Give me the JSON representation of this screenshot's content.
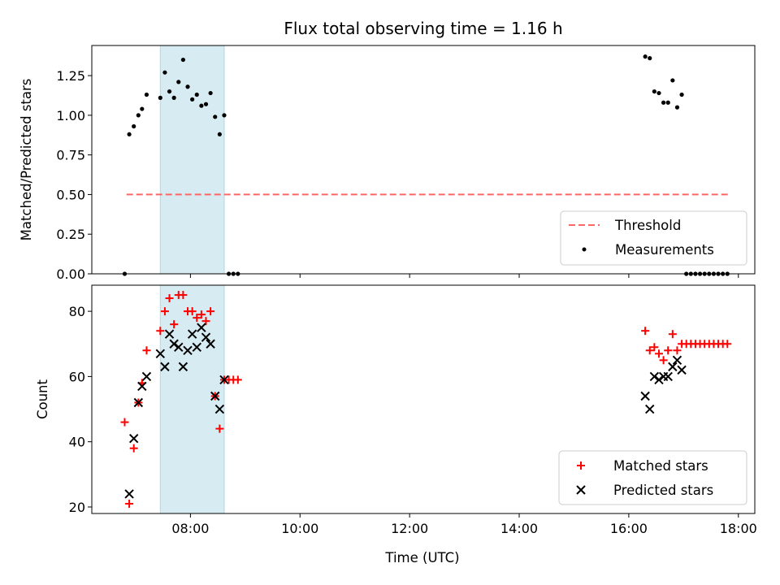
{
  "chart_data": [
    {
      "type": "scatter",
      "title": "Flux total observing time = 1.16 h",
      "xlabel": "",
      "ylabel": "Matched/Predicted stars",
      "ylim": [
        0,
        1.44
      ],
      "yticks": [
        "0.00",
        "0.25",
        "0.50",
        "0.75",
        "1.00",
        "1.25"
      ],
      "xlim_hours": [
        6.2,
        18.3
      ],
      "shaded_region": {
        "start": "07:27",
        "end": "08:37",
        "color": "#add8e6"
      },
      "threshold": {
        "name": "Threshold",
        "value": 0.5,
        "x_start": "06:50",
        "x_end": "17:50",
        "color": "#ff6666"
      },
      "series": [
        {
          "name": "Measurements",
          "color": "#000000",
          "marker": "dot",
          "points": [
            [
              "06:48",
              0.0
            ],
            [
              "06:53",
              0.88
            ],
            [
              "06:58",
              0.93
            ],
            [
              "07:03",
              1.0
            ],
            [
              "07:07",
              1.04
            ],
            [
              "07:12",
              1.13
            ],
            [
              "07:27",
              1.11
            ],
            [
              "07:32",
              1.27
            ],
            [
              "07:37",
              1.15
            ],
            [
              "07:42",
              1.11
            ],
            [
              "07:47",
              1.21
            ],
            [
              "07:52",
              1.35
            ],
            [
              "07:57",
              1.18
            ],
            [
              "08:02",
              1.1
            ],
            [
              "08:07",
              1.13
            ],
            [
              "08:12",
              1.06
            ],
            [
              "08:17",
              1.07
            ],
            [
              "08:22",
              1.14
            ],
            [
              "08:27",
              0.99
            ],
            [
              "08:32",
              0.88
            ],
            [
              "08:37",
              1.0
            ],
            [
              "08:42",
              0.0
            ],
            [
              "08:47",
              0.0
            ],
            [
              "08:52",
              0.0
            ],
            [
              "16:18",
              1.37
            ],
            [
              "16:23",
              1.36
            ],
            [
              "16:28",
              1.15
            ],
            [
              "16:33",
              1.14
            ],
            [
              "16:38",
              1.08
            ],
            [
              "16:43",
              1.08
            ],
            [
              "16:48",
              1.22
            ],
            [
              "16:53",
              1.05
            ],
            [
              "16:58",
              1.13
            ],
            [
              "17:03",
              0.0
            ],
            [
              "17:08",
              0.0
            ],
            [
              "17:13",
              0.0
            ],
            [
              "17:18",
              0.0
            ],
            [
              "17:23",
              0.0
            ],
            [
              "17:28",
              0.0
            ],
            [
              "17:33",
              0.0
            ],
            [
              "17:38",
              0.0
            ],
            [
              "17:43",
              0.0
            ],
            [
              "17:48",
              0.0
            ]
          ]
        }
      ],
      "legend": {
        "placement": "lower-right",
        "entries": [
          "Threshold",
          "Measurements"
        ]
      }
    },
    {
      "type": "scatter",
      "title": "",
      "xlabel": "Time (UTC)",
      "ylabel": "Count",
      "ylim": [
        18,
        88
      ],
      "yticks": [
        "20",
        "40",
        "60",
        "80"
      ],
      "xticks": [
        "08:00",
        "10:00",
        "12:00",
        "14:00",
        "16:00",
        "18:00"
      ],
      "xlim_hours": [
        6.2,
        18.3
      ],
      "shaded_region": {
        "start": "07:27",
        "end": "08:37",
        "color": "#add8e6"
      },
      "series": [
        {
          "name": "Matched stars",
          "color": "#ff0000",
          "marker": "plus",
          "points": [
            [
              "06:48",
              46
            ],
            [
              "06:53",
              21
            ],
            [
              "06:58",
              38
            ],
            [
              "07:03",
              52
            ],
            [
              "07:07",
              58
            ],
            [
              "07:12",
              68
            ],
            [
              "07:27",
              74
            ],
            [
              "07:32",
              80
            ],
            [
              "07:37",
              84
            ],
            [
              "07:42",
              76
            ],
            [
              "07:47",
              85
            ],
            [
              "07:52",
              85
            ],
            [
              "07:57",
              80
            ],
            [
              "08:02",
              80
            ],
            [
              "08:07",
              78
            ],
            [
              "08:12",
              79
            ],
            [
              "08:17",
              77
            ],
            [
              "08:22",
              80
            ],
            [
              "08:27",
              54
            ],
            [
              "08:32",
              44
            ],
            [
              "08:37",
              59
            ],
            [
              "08:42",
              59
            ],
            [
              "08:47",
              59
            ],
            [
              "08:52",
              59
            ],
            [
              "16:18",
              74
            ],
            [
              "16:23",
              68
            ],
            [
              "16:28",
              69
            ],
            [
              "16:33",
              67
            ],
            [
              "16:38",
              65
            ],
            [
              "16:43",
              68
            ],
            [
              "16:48",
              73
            ],
            [
              "16:53",
              68
            ],
            [
              "16:58",
              70
            ],
            [
              "17:03",
              70
            ],
            [
              "17:08",
              70
            ],
            [
              "17:13",
              70
            ],
            [
              "17:18",
              70
            ],
            [
              "17:23",
              70
            ],
            [
              "17:28",
              70
            ],
            [
              "17:33",
              70
            ],
            [
              "17:38",
              70
            ],
            [
              "17:43",
              70
            ],
            [
              "17:48",
              70
            ]
          ]
        },
        {
          "name": "Predicted stars",
          "color": "#000000",
          "marker": "x",
          "points": [
            [
              "06:53",
              24
            ],
            [
              "06:58",
              41
            ],
            [
              "07:03",
              52
            ],
            [
              "07:07",
              57
            ],
            [
              "07:12",
              60
            ],
            [
              "07:27",
              67
            ],
            [
              "07:32",
              63
            ],
            [
              "07:37",
              73
            ],
            [
              "07:42",
              70
            ],
            [
              "07:47",
              69
            ],
            [
              "07:52",
              63
            ],
            [
              "07:57",
              68
            ],
            [
              "08:02",
              73
            ],
            [
              "08:07",
              69
            ],
            [
              "08:12",
              75
            ],
            [
              "08:17",
              72
            ],
            [
              "08:22",
              70
            ],
            [
              "08:27",
              54
            ],
            [
              "08:32",
              50
            ],
            [
              "08:37",
              59
            ],
            [
              "16:18",
              54
            ],
            [
              "16:23",
              50
            ],
            [
              "16:28",
              60
            ],
            [
              "16:33",
              59
            ],
            [
              "16:38",
              60
            ],
            [
              "16:43",
              60
            ],
            [
              "16:48",
              63
            ],
            [
              "16:53",
              65
            ],
            [
              "16:58",
              62
            ]
          ]
        }
      ],
      "legend": {
        "placement": "lower-right",
        "entries": [
          "Matched stars",
          "Predicted stars"
        ]
      }
    }
  ]
}
